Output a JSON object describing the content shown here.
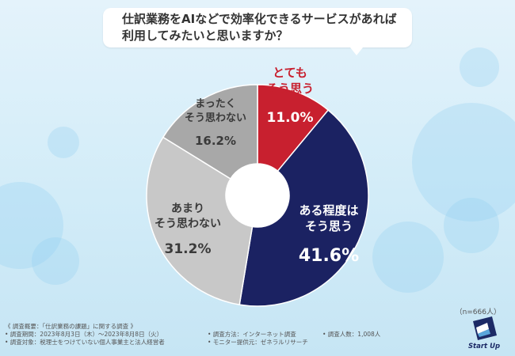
{
  "question": {
    "line1": "仕訳業務をAIなどで効率化できるサービスがあれば",
    "line2": "利用してみたいと思いますか？"
  },
  "chart_data": {
    "type": "pie",
    "donut": true,
    "slices": [
      {
        "label_lines": [
          "とても",
          "そう思う"
        ],
        "value": 11.0,
        "value_label": "11.0%",
        "color": "#c8202f",
        "label_color": "#c8202f",
        "value_color": "#ffffff"
      },
      {
        "label_lines": [
          "ある程度は",
          "そう思う"
        ],
        "value": 41.6,
        "value_label": "41.6%",
        "color": "#1b2262",
        "label_color": "#ffffff",
        "value_color": "#ffffff"
      },
      {
        "label_lines": [
          "あまり",
          "そう思わない"
        ],
        "value": 31.2,
        "value_label": "31.2%",
        "color": "#c8c8c8",
        "label_color": "#3a3a3a",
        "value_color": "#3a3a3a"
      },
      {
        "label_lines": [
          "まったく",
          "そう思わない"
        ],
        "value": 16.2,
        "value_label": "16.2%",
        "color": "#a8a8a8",
        "label_color": "#3a3a3a",
        "value_color": "#3a3a3a"
      }
    ]
  },
  "sample_size": "（n=666人）",
  "footer": {
    "overview": "《 調査概要：「仕訳業務の課題」に関する調査 》",
    "period": "• 調査期間：2023年8月3日（木）～2023年8月8日（火）",
    "target": "• 調査対象：税理士をつけていない個人事業主と法人経営者",
    "method": "• 調査方法：インターネット調査",
    "provider": "• モニター提供元：ゼネラルリサーチ",
    "count": "• 調査人数：1,008人"
  },
  "logo": {
    "text": "Start Up"
  },
  "colors": {
    "background": "#d2ecf8",
    "red": "#c8202f",
    "navy": "#1b2262",
    "light_gray": "#c8c8c8",
    "gray": "#a8a8a8"
  }
}
